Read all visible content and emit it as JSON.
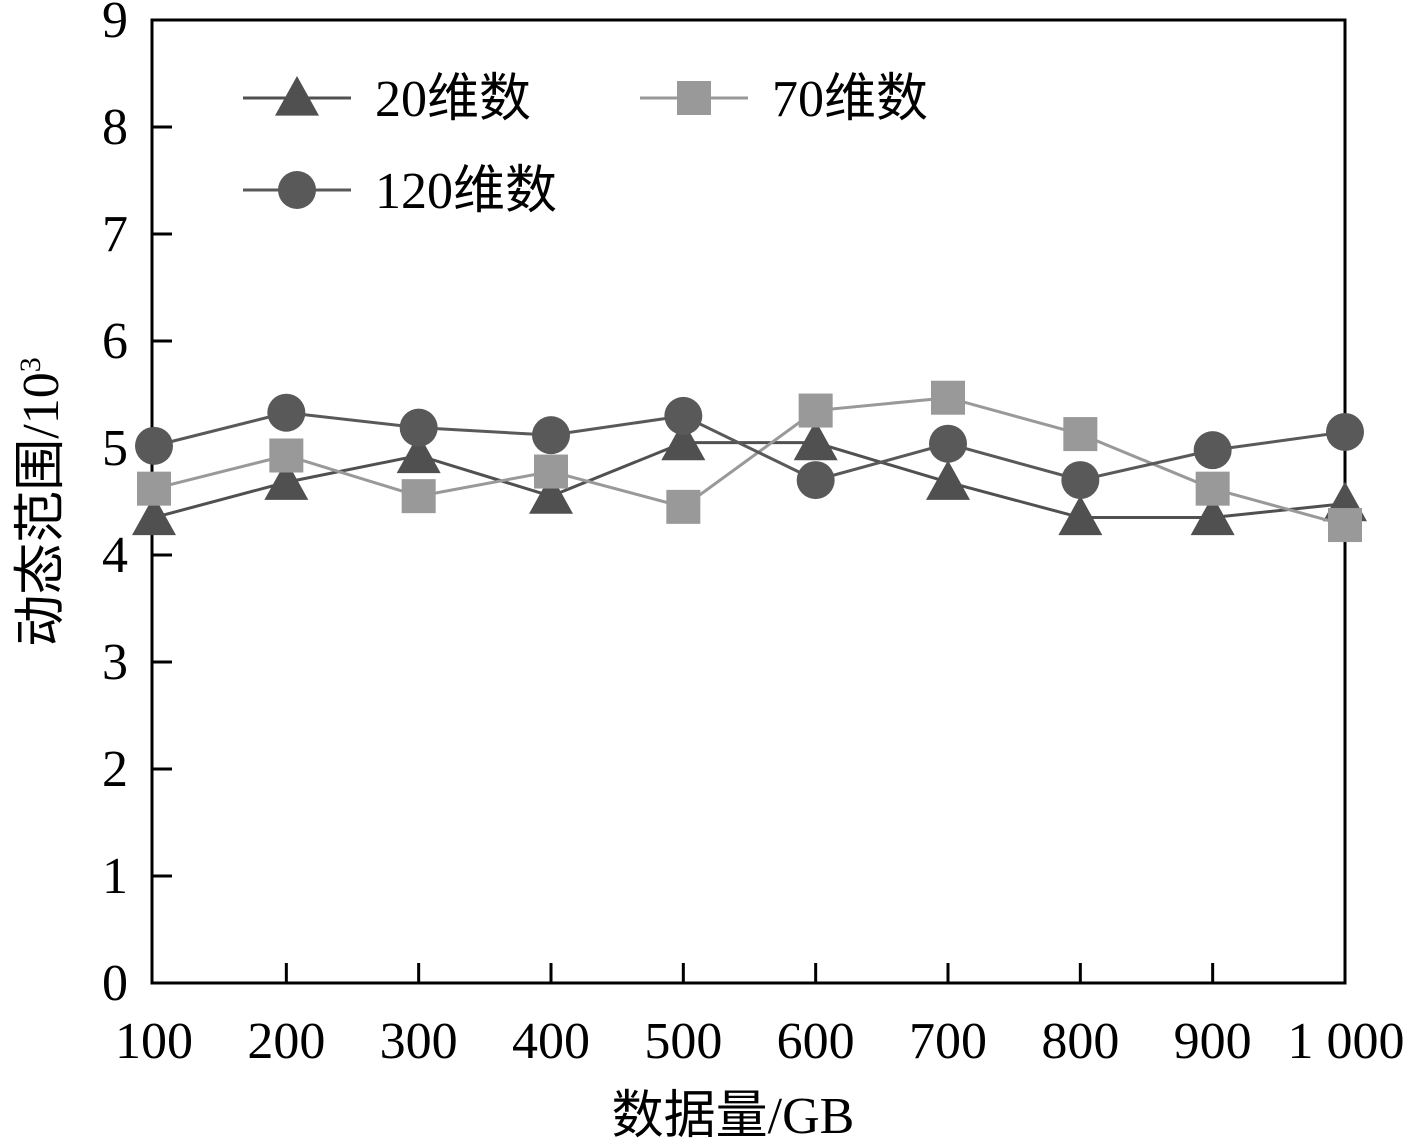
{
  "chart_data": {
    "type": "line",
    "xlabel": "数据量/GB",
    "ylabel_main": "动态范围/10",
    "ylabel_sup": "3",
    "x_ticks": [
      "100",
      "200",
      "300",
      "400",
      "500",
      "600",
      "700",
      "800",
      "900",
      "1 000"
    ],
    "x": [
      100,
      200,
      300,
      400,
      500,
      600,
      700,
      800,
      900,
      1000
    ],
    "y_ticks": [
      "0",
      "1",
      "2",
      "3",
      "4",
      "5",
      "6",
      "7",
      "8",
      "9"
    ],
    "ylim": [
      0,
      9
    ],
    "grid": false,
    "legend_position": "top-left",
    "series": [
      {
        "name": "20维数",
        "marker": "triangle",
        "color": "#505050",
        "values": [
          4.35,
          4.68,
          4.93,
          4.55,
          5.05,
          5.05,
          4.68,
          4.35,
          4.35,
          4.48
        ]
      },
      {
        "name": "70维数",
        "marker": "square",
        "color": "#999999",
        "values": [
          4.62,
          4.93,
          4.55,
          4.78,
          4.45,
          5.35,
          5.47,
          5.13,
          4.62,
          4.28
        ]
      },
      {
        "name": "120维数",
        "marker": "circle",
        "color": "#595959",
        "values": [
          5.02,
          5.33,
          5.19,
          5.12,
          5.3,
          4.7,
          5.04,
          4.7,
          4.98,
          5.15
        ]
      }
    ]
  }
}
